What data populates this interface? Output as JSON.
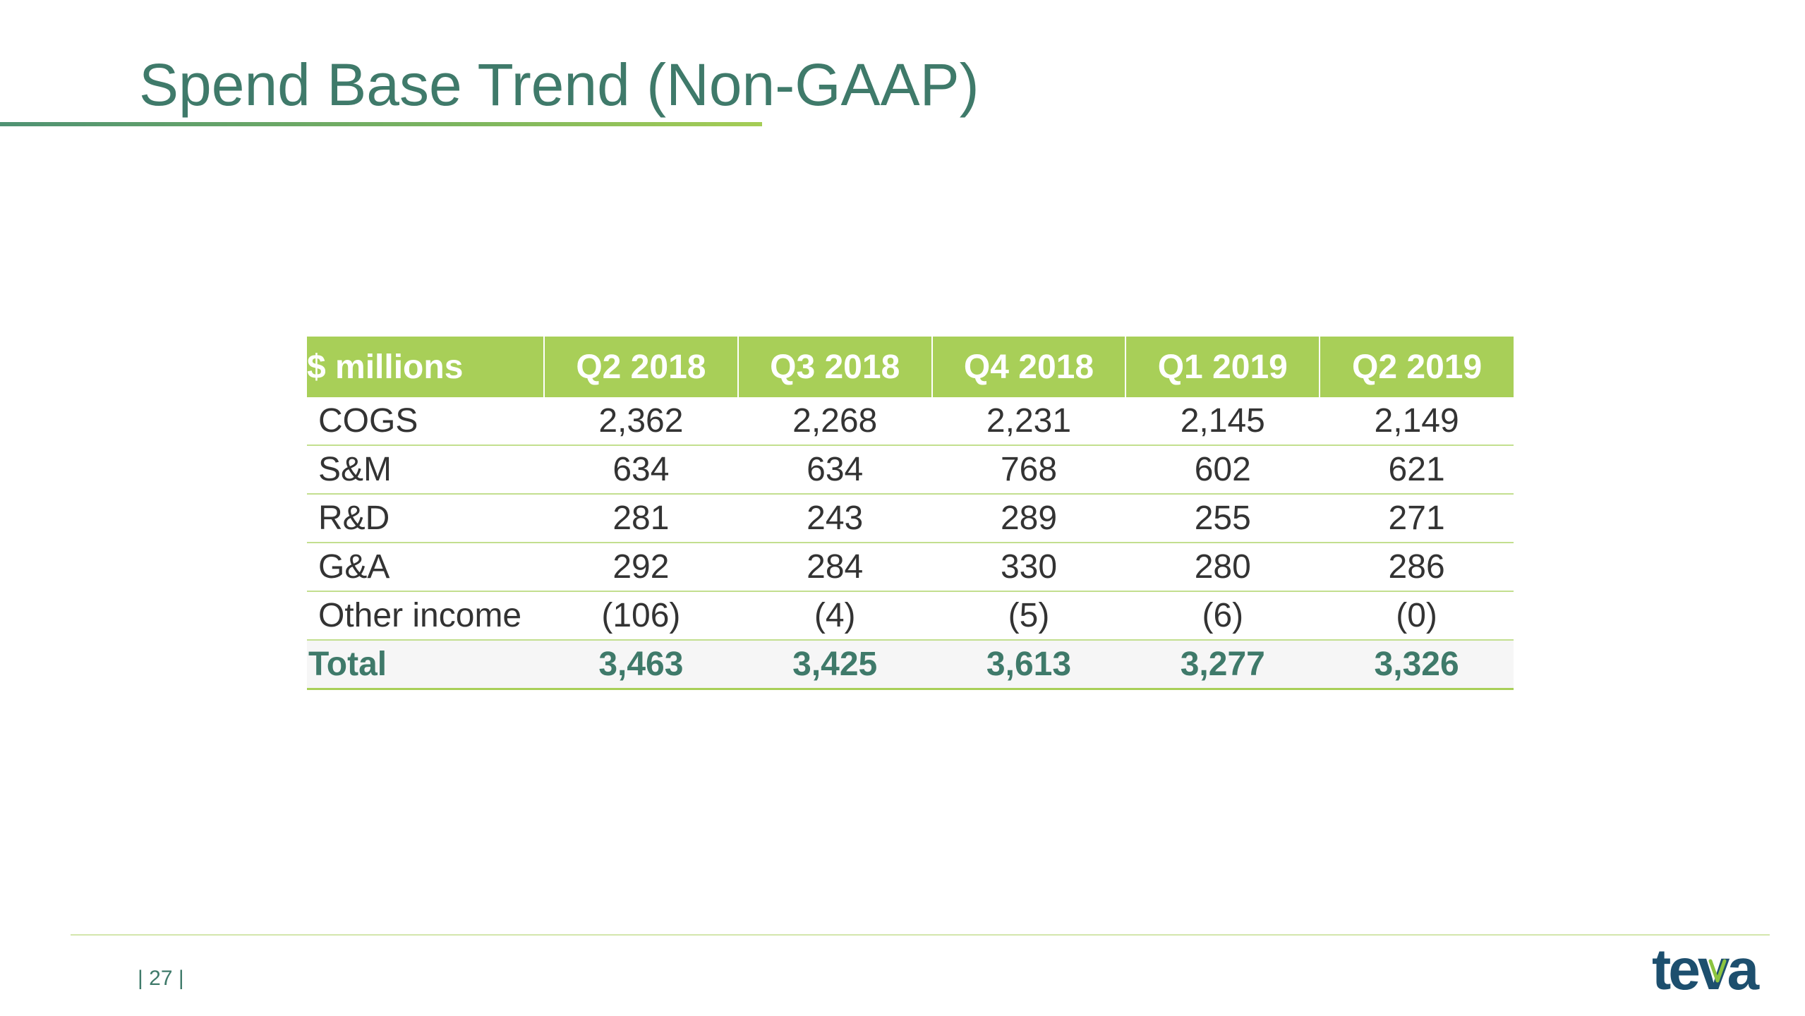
{
  "slide": {
    "title": "Spend Base Trend (Non-GAAP)",
    "page_number": "| 27 |",
    "logo": {
      "text": "teva",
      "text_color": "#1d4f6e",
      "accent_color": "#8cc43f"
    }
  },
  "colors": {
    "title": "#3f7a6a",
    "header_fill": "#a8cf58",
    "row_divider": "#c3df8f",
    "total_text": "#3f7a6a"
  },
  "table": {
    "headers": [
      "$ millions",
      "Q2 2018",
      "Q3 2018",
      "Q4 2018",
      "Q1 2019",
      "Q2 2019"
    ],
    "rows": [
      {
        "label": "COGS",
        "values": [
          "2,362",
          "2,268",
          "2,231",
          "2,145",
          "2,149"
        ]
      },
      {
        "label": "S&M",
        "values": [
          "634",
          "634",
          "768",
          "602",
          "621"
        ]
      },
      {
        "label": "R&D",
        "values": [
          "281",
          "243",
          "289",
          "255",
          "271"
        ]
      },
      {
        "label": "G&A",
        "values": [
          "292",
          "284",
          "330",
          "280",
          "286"
        ]
      },
      {
        "label": "Other income",
        "values": [
          "(106)",
          "(4)",
          "(5)",
          "(6)",
          "(0)"
        ]
      }
    ],
    "total": {
      "label": "Total",
      "values": [
        "3,463",
        "3,425",
        "3,613",
        "3,277",
        "3,326"
      ]
    }
  }
}
